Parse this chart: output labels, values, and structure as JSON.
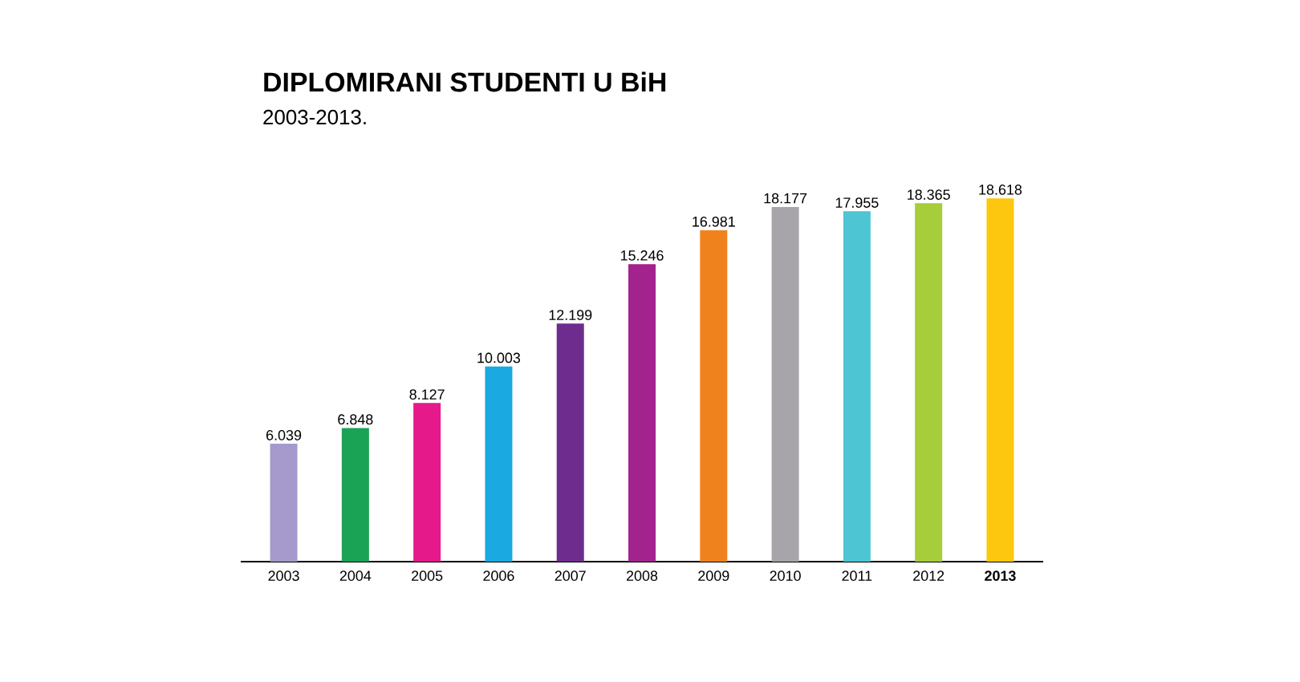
{
  "chart_data": {
    "type": "bar",
    "title": "DIPLOMIRANI STUDENTI U BiH",
    "subtitle": "2003-2013.",
    "categories": [
      "2003",
      "2004",
      "2005",
      "2006",
      "2007",
      "2008",
      "2009",
      "2010",
      "2011",
      "2012",
      "**2013**"
    ],
    "values": [
      6039,
      6848,
      8127,
      10003,
      12199,
      15246,
      16981,
      18177,
      17955,
      18365,
      18618
    ],
    "value_labels": [
      "6.039",
      "6.848",
      "8.127",
      "10.003",
      "12.199",
      "15.246",
      "16.981",
      "18.177",
      "17.955",
      "18.365",
      "18.618"
    ],
    "colors": [
      "#a59acb",
      "#1aa355",
      "#e5198a",
      "#1ba9e1",
      "#6e2c8e",
      "#a3238e",
      "#f0821e",
      "#a7a5a9",
      "#4ec5d3",
      "#a6cd3a",
      "#fdc70f"
    ]
  }
}
